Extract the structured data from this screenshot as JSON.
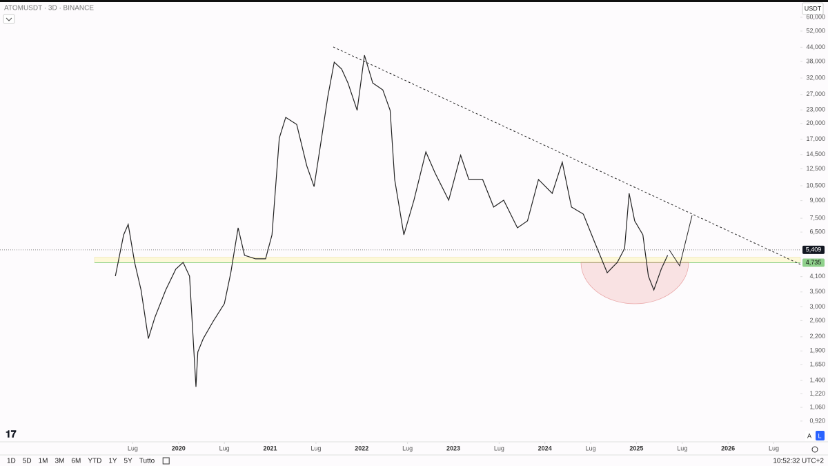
{
  "header": {
    "symbol": "ATOMUSDT · 3D · BINANCE",
    "currency": "USDT"
  },
  "toolbar": {
    "ranges": [
      "1D",
      "5D",
      "1M",
      "3M",
      "6M",
      "YTD",
      "1Y",
      "5Y",
      "Tutto"
    ],
    "time": "10:52:32 UTC+2",
    "scale_buttons": [
      "A",
      "L"
    ]
  },
  "chart_data": {
    "type": "line",
    "color": "#222222",
    "log_scale": true,
    "x": [
      2019.31,
      2019.4,
      2019.45,
      2019.52,
      2019.59,
      2019.67,
      2019.74,
      2019.86,
      2019.97,
      2020.05,
      2020.12,
      2020.19,
      2020.21,
      2020.27,
      2020.38,
      2020.5,
      2020.57,
      2020.65,
      2020.72,
      2020.84,
      2020.95,
      2021.02,
      2021.1,
      2021.17,
      2021.29,
      2021.4,
      2021.48,
      2021.55,
      2021.63,
      2021.7,
      2021.78,
      2021.85,
      2021.95,
      2022.03,
      2022.12,
      2022.23,
      2022.31,
      2022.36,
      2022.46,
      2022.57,
      2022.7,
      2022.8,
      2022.95,
      2023.08,
      2023.17,
      2023.32,
      2023.44,
      2023.55,
      2023.7,
      2023.81,
      2023.93,
      2024.08,
      2024.19,
      2024.29,
      2024.42,
      2024.54,
      2024.68,
      2024.79,
      2024.87,
      2024.92,
      2024.98,
      2025.07,
      2025.13,
      2025.19,
      2025.27,
      2025.34
    ],
    "values": [
      4.12,
      6.32,
      7.04,
      4.75,
      3.57,
      2.16,
      2.68,
      3.57,
      4.43,
      4.75,
      4.12,
      1.31,
      1.88,
      2.16,
      2.59,
      3.1,
      4.27,
      6.79,
      5.11,
      4.93,
      4.93,
      6.32,
      17.2,
      21.3,
      19.8,
      12.9,
      10.4,
      16.0,
      26.4,
      37.7,
      35.1,
      30.4,
      22.9,
      40.5,
      30.4,
      28.3,
      22.9,
      11.2,
      6.32,
      9.04,
      14.9,
      12.0,
      9.04,
      14.4,
      11.2,
      11.2,
      8.42,
      9.04,
      6.79,
      7.3,
      11.2,
      9.7,
      13.4,
      8.42,
      7.83,
      5.89,
      4.27,
      4.75,
      5.48,
      9.7,
      7.3,
      6.32,
      4.12,
      3.57,
      4.43,
      5.11
    ],
    "xlim": [
      2018.05,
      2026.79
    ],
    "xticks": [
      {
        "value": 2019.5,
        "label": "Lug"
      },
      2020,
      {
        "value": 2020.5,
        "label": "Lug"
      },
      2021,
      {
        "value": 2021.5,
        "label": "Lug"
      },
      2022,
      {
        "value": 2022.5,
        "label": "Lug"
      },
      2023,
      {
        "value": 2023.5,
        "label": "Lug"
      },
      2024,
      {
        "value": 2024.5,
        "label": "Lug"
      },
      2025,
      {
        "value": 2025.5,
        "label": "Lug"
      },
      2026,
      {
        "value": 2026.5,
        "label": "Lug"
      }
    ],
    "ylim": [
      0.742,
      69.2
    ],
    "yticks": [
      {
        "value": 60,
        "label": "60,000"
      },
      {
        "value": 52,
        "label": "52,000"
      },
      {
        "value": 44,
        "label": "44,000"
      },
      {
        "value": 38,
        "label": "38,000"
      },
      {
        "value": 32,
        "label": "32,000"
      },
      {
        "value": 27,
        "label": "27,000"
      },
      {
        "value": 23,
        "label": "23,000"
      },
      {
        "value": 20,
        "label": "20,000"
      },
      {
        "value": 17,
        "label": "17,000"
      },
      {
        "value": 14.5,
        "label": "14,500"
      },
      {
        "value": 12.5,
        "label": "12,500"
      },
      {
        "value": 10.5,
        "label": "10,500"
      },
      {
        "value": 9,
        "label": "9,000"
      },
      {
        "value": 7.5,
        "label": "7,500"
      },
      {
        "value": 6.5,
        "label": "6,500"
      },
      {
        "value": 4.1,
        "label": "4,100"
      },
      {
        "value": 3.5,
        "label": "3,500"
      },
      {
        "value": 3,
        "label": "3,000"
      },
      {
        "value": 2.6,
        "label": "2,600"
      },
      {
        "value": 2.2,
        "label": "2,200"
      },
      {
        "value": 1.9,
        "label": "1,900"
      },
      {
        "value": 1.65,
        "label": "1,650"
      },
      {
        "value": 1.4,
        "label": "1,400"
      },
      {
        "value": 1.22,
        "label": "1,220"
      },
      {
        "value": 1.06,
        "label": "1,060"
      },
      {
        "value": 0.92,
        "label": "0,920"
      }
    ],
    "price_labels": [
      {
        "value": 5.409,
        "label": "5,409",
        "color": "#131722"
      },
      {
        "value": 4.735,
        "label": "4,735",
        "color": "#8fd18c"
      }
    ]
  }
}
